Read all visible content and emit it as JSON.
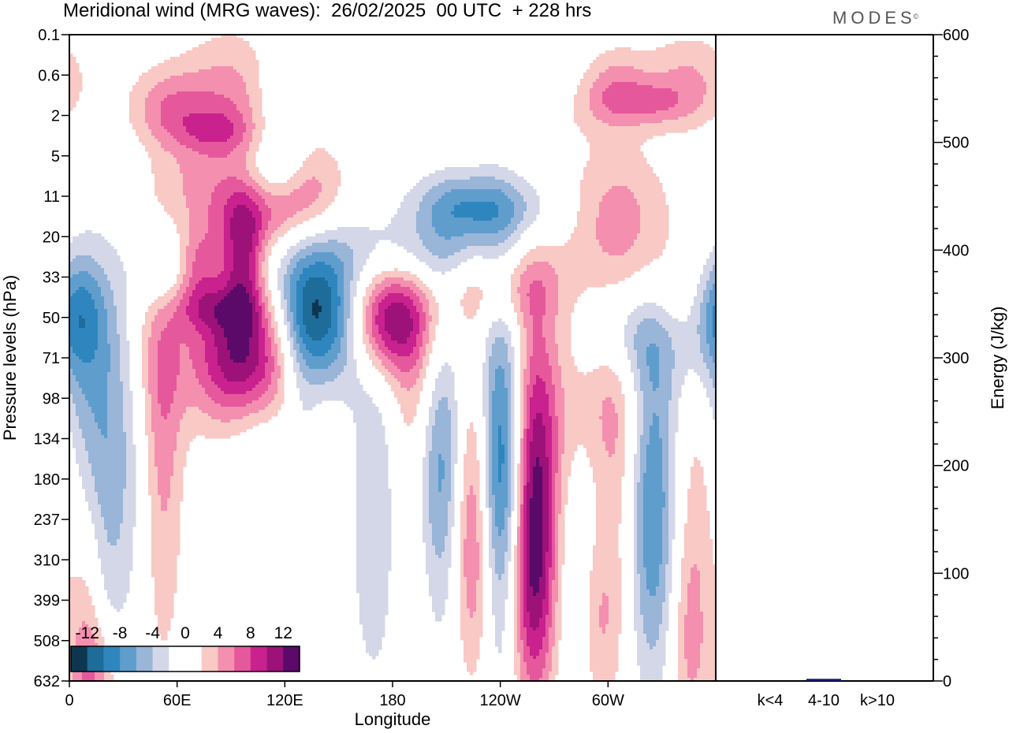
{
  "header": {
    "title": "Meridional wind (MRG waves):  26/02/2025  00 UTC  + 228 hrs",
    "brand": "MODES",
    "brand_mark": "©"
  },
  "chart_data": [
    {
      "type": "heatmap",
      "title": "Meridional wind (MRG waves):  26/02/2025  00 UTC  + 228 hrs",
      "xlabel": "Longitude",
      "ylabel": "Pressure levels (hPa)",
      "x_ticks": [
        "0",
        "60E",
        "120E",
        "180",
        "120W",
        "60W"
      ],
      "y_ticks": [
        "0.1",
        "0.6",
        "2",
        "5",
        "11",
        "20",
        "33",
        "50",
        "71",
        "98",
        "134",
        "180",
        "237",
        "310",
        "399",
        "508",
        "632"
      ],
      "colorbar": {
        "labels": [
          "-12",
          "-8",
          "-4",
          "0",
          "4",
          "8",
          "12"
        ],
        "colors": [
          "#0f3650",
          "#1d6c9a",
          "#2f86bf",
          "#5f9dcd",
          "#99b5d8",
          "#d3d7e8",
          "#ffffff",
          "#ffffff",
          "#f9c9c5",
          "#f48fb0",
          "#e6589c",
          "#c9218e",
          "#9c1278",
          "#5b0a6a"
        ]
      },
      "features": [
        {
          "lon": 100,
          "lev": 8,
          "v": 14
        },
        {
          "lon": 140,
          "lev": 7,
          "v": -15
        },
        {
          "lon": 176,
          "lev": 7,
          "v": 13
        },
        {
          "lon": 226,
          "lev": 12,
          "v": 11
        },
        {
          "lon": 239,
          "lev": 11.5,
          "v": -14
        },
        {
          "lon": 259,
          "lev": 11.5,
          "v": 13
        },
        {
          "lon": 325,
          "lev": 11.8,
          "v": -8
        },
        {
          "lon": 3,
          "lev": 6.8,
          "v": -7
        },
        {
          "lon": 52,
          "lev": 8,
          "v": 4
        },
        {
          "lon": 95,
          "lev": 4,
          "v": 6
        }
      ]
    },
    {
      "type": "bar",
      "categories": [
        "k<4",
        "4-10",
        "k>10"
      ],
      "values": [
        0,
        2,
        0
      ],
      "ylabel": "Energy (J/kg)",
      "ylim": [
        0,
        600
      ],
      "y_ticks": [
        "0",
        "100",
        "200",
        "300",
        "400",
        "500",
        "600"
      ],
      "color": "#1a1a6e"
    }
  ]
}
